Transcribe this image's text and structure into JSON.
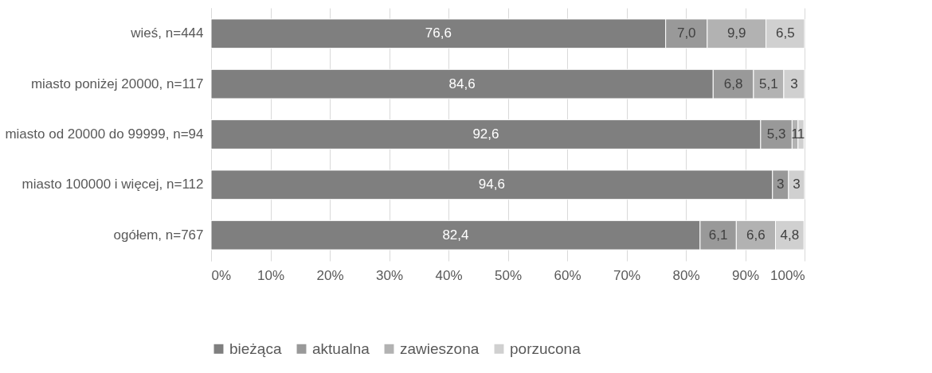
{
  "chart_data": {
    "type": "bar",
    "orientation": "horizontal",
    "stacked": true,
    "categories": [
      "wieś, n=444",
      "miasto poniżej 20000, n=117",
      "miasto od 20000 do 99999, n=94",
      "miasto 100000 i więcej, n=112",
      "ogółem, n=767"
    ],
    "series": [
      {
        "name": "bieżąca",
        "color": "#7f7f7f",
        "values": [
          76.6,
          84.6,
          92.6,
          94.6,
          82.4
        ],
        "value_labels": [
          "76,6",
          "84,6",
          "92,6",
          "94,6",
          "82,4"
        ]
      },
      {
        "name": "aktualna",
        "color": "#999999",
        "values": [
          7.0,
          6.8,
          5.3,
          2.7,
          6.1
        ],
        "value_labels": [
          "7,0",
          "6,8",
          "5,3",
          "3",
          "6,1"
        ]
      },
      {
        "name": "zawieszona",
        "color": "#b2b2b2",
        "values": [
          9.9,
          5.1,
          1,
          null,
          6.6
        ],
        "value_labels": [
          "9,9",
          "5,1",
          "1",
          null,
          "6,6"
        ]
      },
      {
        "name": "porzucona",
        "color": "#d0d0d0",
        "values": [
          6.5,
          3.5,
          1,
          2.7,
          4.8
        ],
        "value_labels": [
          "6,5",
          "3",
          "1",
          "3",
          "4,8"
        ]
      }
    ],
    "xlim": [
      0,
      100
    ],
    "xticks": [
      {
        "value": 0,
        "label": "0%"
      },
      {
        "value": 10,
        "label": "10%"
      },
      {
        "value": 20,
        "label": "20%"
      },
      {
        "value": 30,
        "label": "30%"
      },
      {
        "value": 40,
        "label": "40%"
      },
      {
        "value": 50,
        "label": "50%"
      },
      {
        "value": 60,
        "label": "60%"
      },
      {
        "value": 70,
        "label": "70%"
      },
      {
        "value": 80,
        "label": "80%"
      },
      {
        "value": 90,
        "label": "90%"
      },
      {
        "value": 100,
        "label": "100%"
      }
    ],
    "grid": "x",
    "legend": "bottom"
  }
}
